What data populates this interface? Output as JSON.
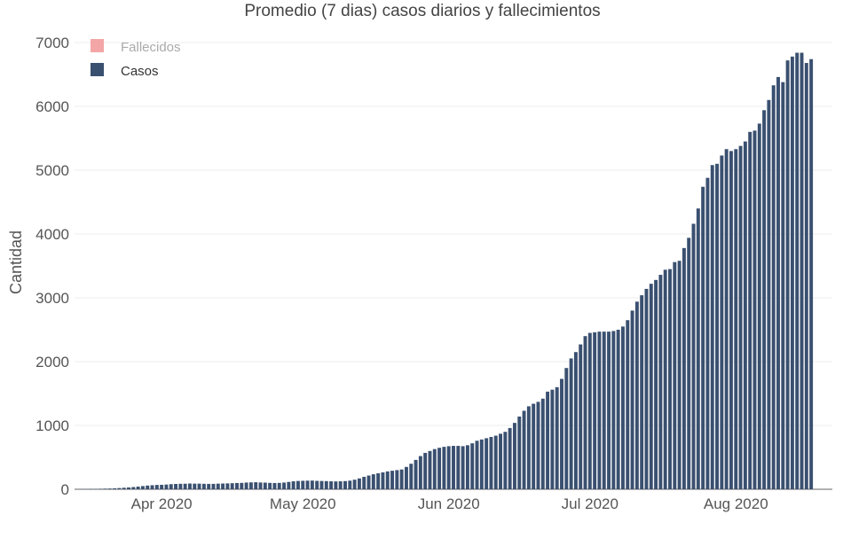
{
  "chart_data": {
    "type": "bar",
    "title": "Promedio (7 dias) casos diarios y fallecimientos",
    "ylabel": "Cantidad",
    "xlabel": "",
    "ylim": [
      0,
      7000
    ],
    "yticks": [
      0,
      1000,
      2000,
      3000,
      4000,
      5000,
      6000,
      7000
    ],
    "x_start": "2020-03-14",
    "x_end": "2020-08-21",
    "xticks": [
      {
        "date": "2020-04-01",
        "label": "Apr 2020"
      },
      {
        "date": "2020-05-01",
        "label": "May 2020"
      },
      {
        "date": "2020-06-01",
        "label": "Jun 2020"
      },
      {
        "date": "2020-07-01",
        "label": "Jul 2020"
      },
      {
        "date": "2020-08-01",
        "label": "Aug 2020"
      }
    ],
    "grid": true,
    "legend_position": "top-left",
    "series": [
      {
        "name": "Fallecidos",
        "color": "#f4a6a6",
        "legend_text_color": "#aaaaaa",
        "values": []
      },
      {
        "name": "Casos",
        "color": "#3a5070",
        "legend_text_color": "#333333",
        "start_date": "2020-03-14",
        "values": [
          2,
          3,
          4,
          5,
          6,
          8,
          10,
          12,
          15,
          19,
          24,
          29,
          35,
          42,
          50,
          58,
          63,
          68,
          70,
          74,
          80,
          83,
          86,
          87,
          90,
          88,
          88,
          86,
          84,
          85,
          88,
          90,
          92,
          95,
          98,
          100,
          105,
          108,
          110,
          106,
          104,
          100,
          98,
          100,
          105,
          115,
          125,
          130,
          133,
          135,
          136,
          132,
          130,
          128,
          125,
          123,
          125,
          128,
          135,
          150,
          170,
          195,
          215,
          235,
          250,
          265,
          280,
          290,
          300,
          310,
          350,
          400,
          460,
          520,
          570,
          600,
          630,
          650,
          665,
          675,
          680,
          680,
          675,
          690,
          720,
          760,
          780,
          800,
          820,
          840,
          870,
          900,
          960,
          1040,
          1140,
          1230,
          1300,
          1340,
          1370,
          1420,
          1530,
          1560,
          1600,
          1730,
          1900,
          2050,
          2150,
          2270,
          2400,
          2450,
          2460,
          2470,
          2470,
          2470,
          2480,
          2500,
          2550,
          2650,
          2800,
          2940,
          3040,
          3140,
          3220,
          3280,
          3360,
          3440,
          3450,
          3560,
          3580,
          3780,
          3940,
          4160,
          4400,
          4740,
          4880,
          5080,
          5100,
          5230,
          5330,
          5300,
          5330,
          5380,
          5450,
          5600,
          5620,
          5730,
          5940,
          6100,
          6330,
          6460,
          6380,
          6720,
          6780,
          6840,
          6840,
          6680,
          6740
        ]
      }
    ]
  }
}
